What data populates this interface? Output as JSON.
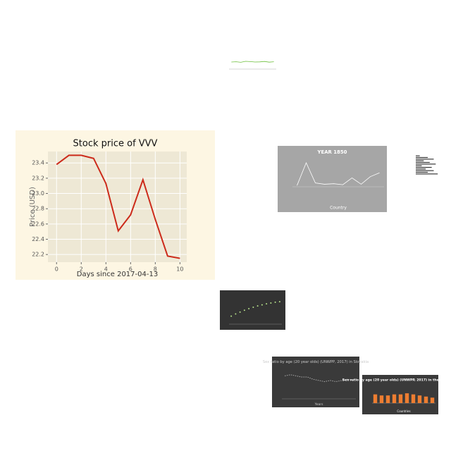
{
  "chart_data": [
    {
      "type": "line",
      "title": "Stock price of VVV",
      "xlabel": "Days since 2017-04-13",
      "ylabel": "Price (USD)",
      "x": [
        0,
        1,
        2,
        3,
        4,
        5,
        6,
        7,
        8,
        9,
        10
      ],
      "values": [
        23.38,
        23.5,
        23.5,
        23.46,
        23.13,
        22.51,
        22.72,
        23.18,
        22.66,
        22.18,
        22.15
      ],
      "color": "#cc2a1a",
      "xlim": [
        -0.7,
        10.55
      ],
      "xticks": [
        0,
        2,
        4,
        6,
        8,
        10
      ],
      "ylim": [
        22.1,
        23.55
      ],
      "yticks": [
        22.2,
        22.4,
        22.6,
        22.8,
        {
          "value": 23,
          "label": "23.0"
        },
        23.2,
        23.4
      ],
      "grid": true
    },
    {
      "type": "line",
      "values": [
        50,
        52,
        48,
        55,
        53,
        50,
        51,
        54,
        49,
        52
      ],
      "color": "#6cbf3a",
      "ylim": [
        0,
        100
      ]
    },
    {
      "type": "line",
      "title": "YEAR 1850",
      "xlabel": "Country",
      "values": [
        5,
        95,
        15,
        10,
        12,
        8,
        35,
        10,
        40,
        55
      ],
      "color": "#ffffff",
      "ylim": [
        0,
        120
      ]
    },
    {
      "type": "hbar",
      "values": [
        2,
        6,
        9,
        4,
        7,
        10,
        3,
        8,
        5,
        9,
        6,
        11
      ],
      "color": "#333333",
      "xlim": [
        0,
        12
      ]
    },
    {
      "type": "scatter",
      "values": [
        30,
        38,
        45,
        52,
        58,
        63,
        68,
        72,
        76,
        79,
        82,
        84
      ],
      "color": "#b5e08a",
      "ylim": [
        0,
        100
      ]
    },
    {
      "type": "line",
      "title": "Sex ratio by age (20 year olds) (UNWPP, 2017) in Slovakia",
      "xlabel": "Years",
      "values": [
        105,
        106,
        105,
        104,
        104,
        102,
        101,
        100,
        101,
        100,
        101,
        102,
        101
      ],
      "color": "#aaaaaa",
      "ylim": [
        85,
        112
      ]
    },
    {
      "type": "bar",
      "title": "Sex ratio by age (20 year olds) (UNWPP, 2017) in the year 2005",
      "xlabel": "Countries",
      "values": [
        8,
        7,
        7,
        8,
        8,
        9,
        8,
        7,
        6,
        5
      ],
      "color": "#ed7d31",
      "ylim": [
        0,
        11
      ]
    }
  ]
}
